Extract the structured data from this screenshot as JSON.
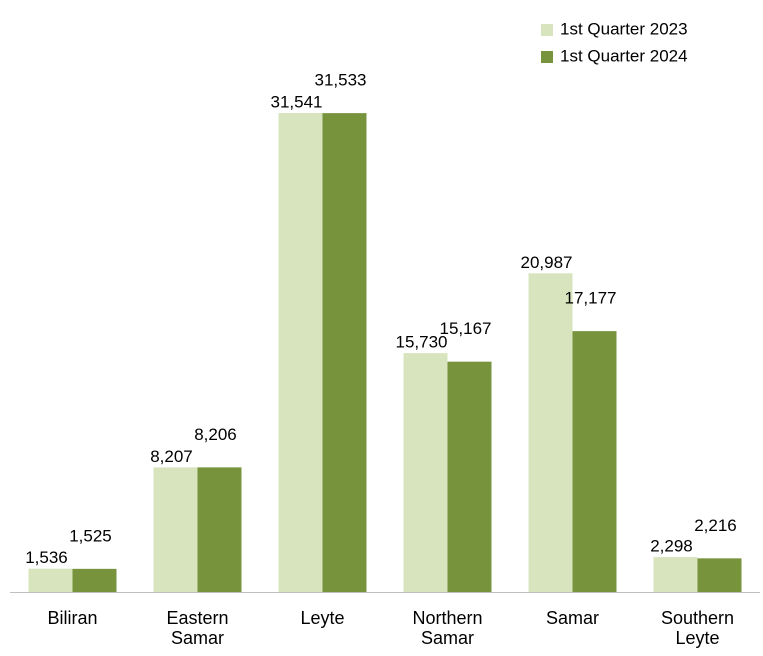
{
  "chart_data": {
    "type": "bar",
    "categories": [
      "Biliran",
      "Eastern Samar",
      "Leyte",
      "Northern Samar",
      "Samar",
      "Southern Leyte"
    ],
    "series": [
      {
        "name": "1st Quarter 2023",
        "color": "#d7e4bd",
        "values": [
          1536,
          8207,
          31541,
          15730,
          20987,
          2298
        ],
        "value_labels": [
          "1,536",
          "8,207",
          "31,541",
          "15,730",
          "20,987",
          "2,298"
        ]
      },
      {
        "name": "1st Quarter 2024",
        "color": "#77933c",
        "values": [
          1525,
          8206,
          31533,
          15167,
          17177,
          2216
        ],
        "value_labels": [
          "1,525",
          "8,206",
          "31,533",
          "15,167",
          "17,177",
          "2,216"
        ]
      }
    ],
    "legend": "top-right"
  }
}
